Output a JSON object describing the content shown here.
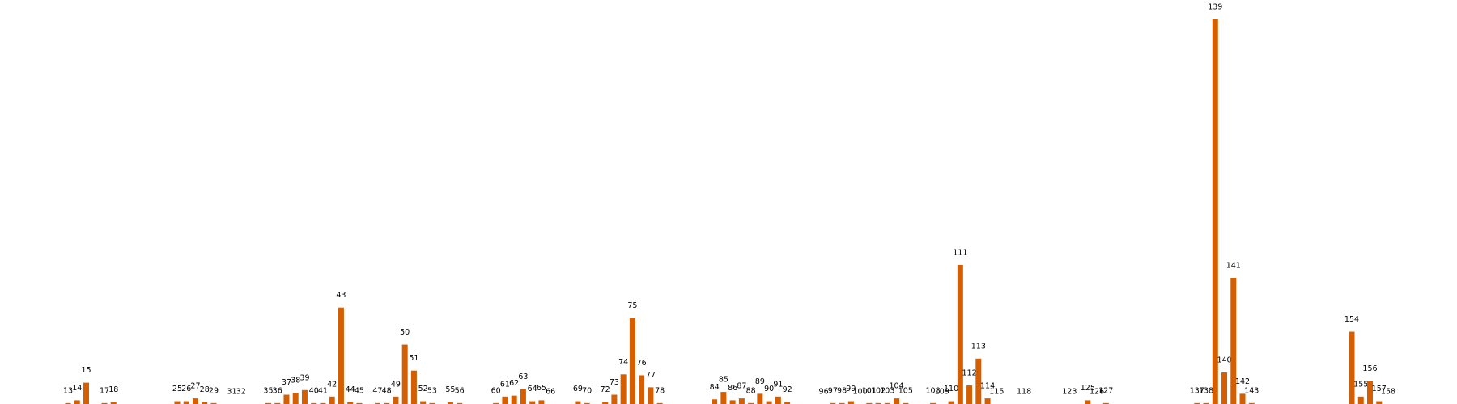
{
  "chart_data": {
    "type": "bar",
    "color": "#d55e00",
    "x": [
      13,
      14,
      15,
      17,
      18,
      25,
      26,
      27,
      28,
      29,
      31,
      32,
      35,
      36,
      37,
      38,
      39,
      40,
      41,
      42,
      43,
      44,
      45,
      47,
      48,
      49,
      50,
      51,
      52,
      53,
      55,
      56,
      60,
      61,
      62,
      63,
      64,
      65,
      66,
      69,
      70,
      72,
      73,
      74,
      75,
      76,
      77,
      78,
      84,
      85,
      86,
      87,
      88,
      89,
      90,
      91,
      92,
      96,
      97,
      98,
      99,
      100,
      101,
      102,
      103,
      104,
      105,
      108,
      109,
      110,
      111,
      112,
      113,
      114,
      115,
      118,
      123,
      125,
      126,
      127,
      137,
      138,
      139,
      140,
      141,
      142,
      143,
      154,
      155,
      156,
      157,
      158
    ],
    "values": [
      1,
      4,
      23,
      1,
      2,
      3,
      3,
      6,
      2,
      1,
      0,
      0,
      1,
      1,
      10,
      12,
      15,
      1,
      1,
      8,
      104,
      2,
      1,
      1,
      1,
      8,
      64,
      36,
      3,
      1,
      2,
      1,
      1,
      8,
      9,
      16,
      3,
      4,
      0,
      3,
      1,
      2,
      10,
      32,
      93,
      31,
      18,
      1,
      5,
      13,
      4,
      6,
      1,
      11,
      3,
      8,
      2,
      0,
      1,
      1,
      3,
      0,
      1,
      1,
      1,
      6,
      1,
      1,
      0,
      3,
      150,
      20,
      49,
      6,
      0,
      0,
      0,
      4,
      0,
      1,
      1,
      1,
      415,
      34,
      136,
      11,
      1,
      78,
      8,
      25,
      3,
      0
    ],
    "xlim": [
      13,
      158
    ],
    "ylim": [
      0,
      415
    ]
  }
}
